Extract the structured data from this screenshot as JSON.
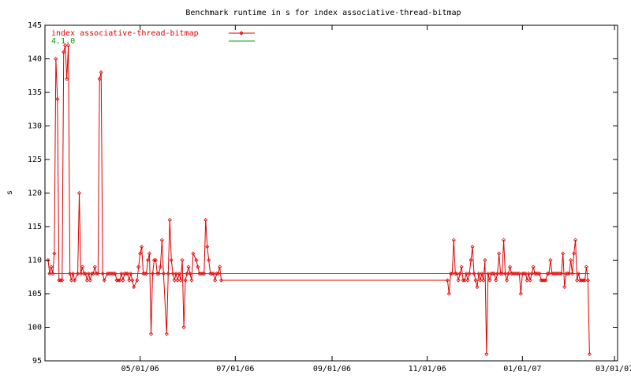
{
  "chart_data": {
    "type": "line",
    "title": "Benchmark runtime in s for index associative-thread-bitmap",
    "ylabel": "s",
    "ylim": [
      95,
      145
    ],
    "yticks": [
      95,
      100,
      105,
      110,
      115,
      120,
      125,
      130,
      135,
      140,
      145
    ],
    "xlim": [
      "2006-03-01",
      "2007-03-03"
    ],
    "xticks": [
      {
        "value": "2006-05-01",
        "label": "05/01/06"
      },
      {
        "value": "2006-07-01",
        "label": "07/01/06"
      },
      {
        "value": "2006-09-01",
        "label": "09/01/06"
      },
      {
        "value": "2006-11-01",
        "label": "11/01/06"
      },
      {
        "value": "2007-01-01",
        "label": "01/01/07"
      },
      {
        "value": "2007-03-01",
        "label": "03/01/07"
      }
    ],
    "legend": "top-left",
    "series": [
      {
        "name": "index associative-thread-bitmap",
        "color": "#e00000",
        "markers": true,
        "x": [
          "2006-03-03",
          "2006-03-04",
          "2006-03-05",
          "2006-03-06",
          "2006-03-07",
          "2006-03-08",
          "2006-03-09",
          "2006-03-10",
          "2006-03-11",
          "2006-03-12",
          "2006-03-13",
          "2006-03-14",
          "2006-03-15",
          "2006-03-16",
          "2006-03-17",
          "2006-03-18",
          "2006-03-19",
          "2006-03-20",
          "2006-03-22",
          "2006-03-23",
          "2006-03-24",
          "2006-03-25",
          "2006-03-26",
          "2006-03-27",
          "2006-03-28",
          "2006-03-29",
          "2006-03-30",
          "2006-03-31",
          "2006-04-01",
          "2006-04-02",
          "2006-04-03",
          "2006-04-04",
          "2006-04-05",
          "2006-04-06",
          "2006-04-07",
          "2006-04-08",
          "2006-04-10",
          "2006-04-11",
          "2006-04-12",
          "2006-04-13",
          "2006-04-14",
          "2006-04-15",
          "2006-04-16",
          "2006-04-17",
          "2006-04-18",
          "2006-04-19",
          "2006-04-20",
          "2006-04-21",
          "2006-04-22",
          "2006-04-23",
          "2006-04-24",
          "2006-04-25",
          "2006-04-26",
          "2006-04-27",
          "2006-04-29",
          "2006-04-30",
          "2006-05-01",
          "2006-05-02",
          "2006-05-03",
          "2006-05-04",
          "2006-05-05",
          "2006-05-06",
          "2006-05-07",
          "2006-05-08",
          "2006-05-09",
          "2006-05-10",
          "2006-05-11",
          "2006-05-12",
          "2006-05-13",
          "2006-05-14",
          "2006-05-15",
          "2006-05-16",
          "2006-05-18",
          "2006-05-19",
          "2006-05-20",
          "2006-05-21",
          "2006-05-22",
          "2006-05-23",
          "2006-05-24",
          "2006-05-25",
          "2006-05-26",
          "2006-05-27",
          "2006-05-28",
          "2006-05-29",
          "2006-05-30",
          "2006-05-31",
          "2006-06-01",
          "2006-06-02",
          "2006-06-03",
          "2006-06-04",
          "2006-06-06",
          "2006-06-07",
          "2006-06-08",
          "2006-06-09",
          "2006-06-10",
          "2006-06-11",
          "2006-06-12",
          "2006-06-13",
          "2006-06-14",
          "2006-06-15",
          "2006-06-16",
          "2006-06-17",
          "2006-06-18",
          "2006-06-19",
          "2006-06-20",
          "2006-06-21",
          "2006-06-22",
          "2006-11-14",
          "2006-11-15",
          "2006-11-16",
          "2006-11-17",
          "2006-11-18",
          "2006-11-19",
          "2006-11-20",
          "2006-11-21",
          "2006-11-22",
          "2006-11-23",
          "2006-11-24",
          "2006-11-25",
          "2006-11-26",
          "2006-11-27",
          "2006-11-28",
          "2006-11-29",
          "2006-11-30",
          "2006-12-01",
          "2006-12-02",
          "2006-12-03",
          "2006-12-04",
          "2006-12-05",
          "2006-12-06",
          "2006-12-07",
          "2006-12-08",
          "2006-12-09",
          "2006-12-10",
          "2006-12-11",
          "2006-12-12",
          "2006-12-13",
          "2006-12-14",
          "2006-12-15",
          "2006-12-16",
          "2006-12-17",
          "2006-12-18",
          "2006-12-19",
          "2006-12-20",
          "2006-12-21",
          "2006-12-22",
          "2006-12-23",
          "2006-12-24",
          "2006-12-25",
          "2006-12-26",
          "2006-12-27",
          "2006-12-28",
          "2006-12-29",
          "2006-12-30",
          "2006-12-31",
          "2007-01-01",
          "2007-01-02",
          "2007-01-03",
          "2007-01-04",
          "2007-01-05",
          "2007-01-06",
          "2007-01-07",
          "2007-01-08",
          "2007-01-09",
          "2007-01-10",
          "2007-01-11",
          "2007-01-12",
          "2007-01-13",
          "2007-01-14",
          "2007-01-15",
          "2007-01-16",
          "2007-01-17",
          "2007-01-18",
          "2007-01-19",
          "2007-01-20",
          "2007-01-21",
          "2007-01-22",
          "2007-01-23",
          "2007-01-24",
          "2007-01-25",
          "2007-01-26",
          "2007-01-27",
          "2007-01-28",
          "2007-01-29",
          "2007-01-30",
          "2007-01-31",
          "2007-02-01",
          "2007-02-02",
          "2007-02-03",
          "2007-02-04",
          "2007-02-05",
          "2007-02-06",
          "2007-02-07",
          "2007-02-08",
          "2007-02-09",
          "2007-02-10",
          "2007-02-11",
          "2007-02-12",
          "2007-02-13"
        ],
        "values": [
          110,
          108,
          109,
          108,
          111,
          140,
          134,
          107,
          107,
          107,
          141,
          142,
          137,
          142,
          108,
          107,
          108,
          107,
          108,
          120,
          108,
          109,
          108,
          108,
          107,
          108,
          107,
          108,
          108,
          109,
          108,
          108,
          137,
          138,
          108,
          107,
          108,
          108,
          108,
          108,
          108,
          108,
          107,
          107,
          107,
          108,
          107,
          108,
          108,
          108,
          107,
          108,
          107,
          106,
          107,
          109,
          111,
          112,
          108,
          108,
          108,
          110,
          111,
          99,
          108,
          110,
          110,
          108,
          108,
          109,
          113,
          108,
          99,
          108,
          116,
          110,
          108,
          107,
          108,
          107,
          108,
          107,
          110,
          100,
          107,
          108,
          109,
          108,
          107,
          111,
          110,
          109,
          108,
          108,
          108,
          108,
          116,
          112,
          110,
          108,
          108,
          108,
          107,
          108,
          108,
          109,
          107,
          107,
          105,
          108,
          108,
          113,
          108,
          108,
          107,
          108,
          109,
          107,
          107,
          108,
          107,
          108,
          110,
          112,
          108,
          107,
          106,
          108,
          107,
          108,
          107,
          110,
          96,
          108,
          107,
          108,
          108,
          108,
          107,
          108,
          111,
          108,
          108,
          113,
          108,
          107,
          108,
          109,
          108,
          108,
          108,
          108,
          108,
          108,
          105,
          108,
          108,
          108,
          107,
          108,
          107,
          108,
          109,
          108,
          108,
          108,
          108,
          107,
          107,
          107,
          107,
          108,
          108,
          110,
          108,
          108,
          108,
          108,
          108,
          108,
          108,
          111,
          106,
          108,
          108,
          108,
          110,
          108,
          111,
          113,
          107,
          108,
          107,
          107,
          107,
          107,
          109,
          107,
          96
        ]
      },
      {
        "name": "4.1.0",
        "color": "#00a000",
        "markers": false,
        "x": [
          "2006-03-03",
          "2007-02-13"
        ],
        "values": [
          108,
          108
        ]
      }
    ]
  }
}
